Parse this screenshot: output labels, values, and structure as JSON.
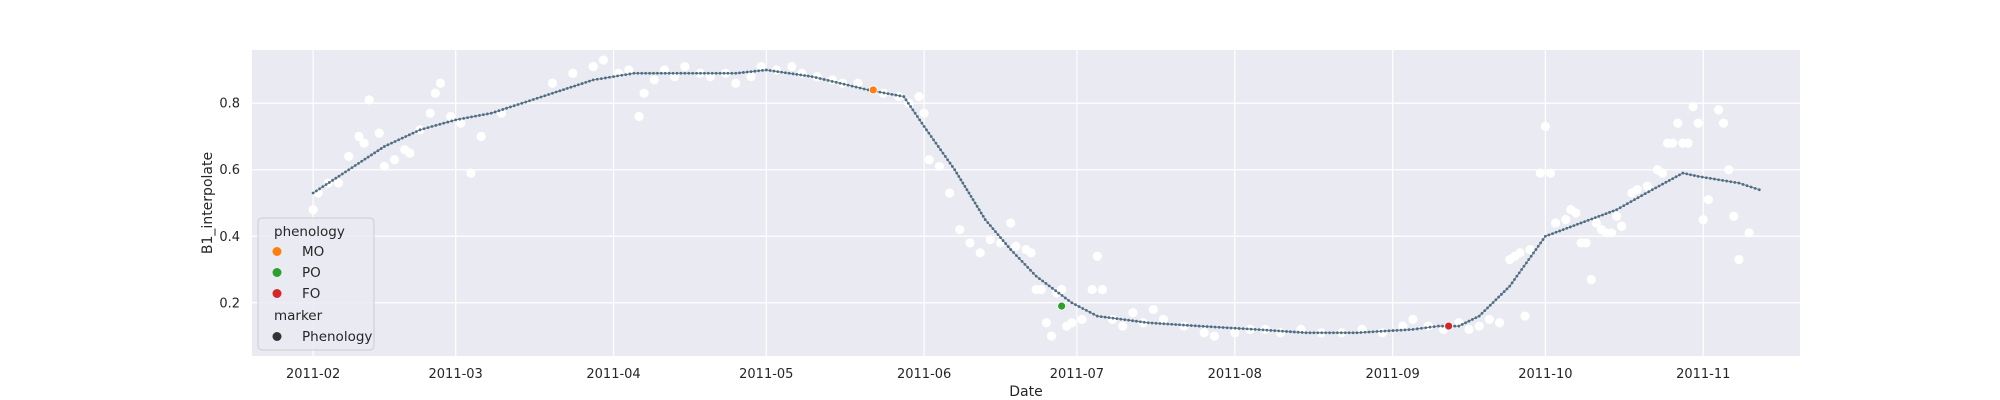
{
  "chart_data": {
    "type": "scatter",
    "title": "",
    "xlabel": "Date",
    "ylabel": "B1_interpolate",
    "x_axis_type": "date",
    "xlim": [
      "2011-01-20",
      "2011-11-20"
    ],
    "ylim": [
      0.04,
      0.96
    ],
    "xticks": [
      "2011-02-01",
      "2011-03-01",
      "2011-04-01",
      "2011-05-01",
      "2011-06-01",
      "2011-07-01",
      "2011-08-01",
      "2011-09-01",
      "2011-10-01",
      "2011-11-01"
    ],
    "xtick_labels": [
      "2011-02",
      "2011-03",
      "2011-04",
      "2011-05",
      "2011-06",
      "2011-07",
      "2011-08",
      "2011-09",
      "2011-10",
      "2011-11"
    ],
    "yticks": [
      0.2,
      0.4,
      0.6,
      0.8
    ],
    "ytick_labels": [
      "0.2",
      "0.4",
      "0.6",
      "0.8"
    ],
    "grid": true,
    "background": "#eaeaf2",
    "legend": {
      "position": "lower-left",
      "title": "phenology",
      "entries": [
        {
          "label": "MO",
          "color": "#ff7f0e"
        },
        {
          "label": "PO",
          "color": "#2ca02c"
        },
        {
          "label": "FO",
          "color": "#d62728"
        }
      ],
      "marker_title": "marker",
      "marker_entries": [
        {
          "label": "Phenology",
          "color": "#333333"
        }
      ]
    },
    "series": [
      {
        "name": "",
        "kind": "scatter",
        "color": "#ffffff",
        "points": [
          [
            "2011-02-01",
            0.48
          ],
          [
            "2011-02-02",
            0.53
          ],
          [
            "2011-02-04",
            0.56
          ],
          [
            "2011-02-06",
            0.56
          ],
          [
            "2011-02-08",
            0.64
          ],
          [
            "2011-02-10",
            0.7
          ],
          [
            "2011-02-11",
            0.68
          ],
          [
            "2011-02-12",
            0.81
          ],
          [
            "2011-02-14",
            0.71
          ],
          [
            "2011-02-15",
            0.61
          ],
          [
            "2011-02-17",
            0.63
          ],
          [
            "2011-02-19",
            0.66
          ],
          [
            "2011-02-20",
            0.65
          ],
          [
            "2011-02-22",
            0.72
          ],
          [
            "2011-02-24",
            0.77
          ],
          [
            "2011-02-25",
            0.83
          ],
          [
            "2011-02-26",
            0.86
          ],
          [
            "2011-02-28",
            0.76
          ],
          [
            "2011-03-02",
            0.74
          ],
          [
            "2011-03-04",
            0.59
          ],
          [
            "2011-03-06",
            0.7
          ],
          [
            "2011-03-10",
            0.77
          ],
          [
            "2011-03-20",
            0.86
          ],
          [
            "2011-03-24",
            0.89
          ],
          [
            "2011-03-28",
            0.91
          ],
          [
            "2011-03-30",
            0.93
          ],
          [
            "2011-04-02",
            0.89
          ],
          [
            "2011-04-04",
            0.9
          ],
          [
            "2011-04-06",
            0.76
          ],
          [
            "2011-04-07",
            0.83
          ],
          [
            "2011-04-09",
            0.87
          ],
          [
            "2011-04-11",
            0.9
          ],
          [
            "2011-04-13",
            0.88
          ],
          [
            "2011-04-15",
            0.91
          ],
          [
            "2011-04-18",
            0.89
          ],
          [
            "2011-04-20",
            0.88
          ],
          [
            "2011-04-23",
            0.89
          ],
          [
            "2011-04-25",
            0.86
          ],
          [
            "2011-04-28",
            0.88
          ],
          [
            "2011-04-30",
            0.91
          ],
          [
            "2011-05-03",
            0.9
          ],
          [
            "2011-05-06",
            0.91
          ],
          [
            "2011-05-08",
            0.89
          ],
          [
            "2011-05-11",
            0.88
          ],
          [
            "2011-05-14",
            0.87
          ],
          [
            "2011-05-16",
            0.86
          ],
          [
            "2011-05-19",
            0.86
          ],
          [
            "2011-05-22",
            0.84
          ],
          [
            "2011-05-24",
            0.83
          ],
          [
            "2011-05-27",
            0.82
          ],
          [
            "2011-05-29",
            0.8
          ],
          [
            "2011-05-31",
            0.82
          ],
          [
            "2011-06-01",
            0.77
          ],
          [
            "2011-06-02",
            0.63
          ],
          [
            "2011-06-04",
            0.61
          ],
          [
            "2011-06-06",
            0.53
          ],
          [
            "2011-06-08",
            0.42
          ],
          [
            "2011-06-10",
            0.38
          ],
          [
            "2011-06-12",
            0.35
          ],
          [
            "2011-06-14",
            0.39
          ],
          [
            "2011-06-16",
            0.38
          ],
          [
            "2011-06-18",
            0.44
          ],
          [
            "2011-06-19",
            0.37
          ],
          [
            "2011-06-21",
            0.36
          ],
          [
            "2011-06-22",
            0.35
          ],
          [
            "2011-06-23",
            0.24
          ],
          [
            "2011-06-24",
            0.24
          ],
          [
            "2011-06-25",
            0.14
          ],
          [
            "2011-06-26",
            0.1
          ],
          [
            "2011-06-27",
            0.23
          ],
          [
            "2011-06-28",
            0.24
          ],
          [
            "2011-06-29",
            0.13
          ],
          [
            "2011-06-30",
            0.14
          ],
          [
            "2011-07-02",
            0.15
          ],
          [
            "2011-07-04",
            0.24
          ],
          [
            "2011-07-05",
            0.34
          ],
          [
            "2011-07-06",
            0.24
          ],
          [
            "2011-07-08",
            0.15
          ],
          [
            "2011-07-10",
            0.13
          ],
          [
            "2011-07-12",
            0.17
          ],
          [
            "2011-07-14",
            0.14
          ],
          [
            "2011-07-16",
            0.18
          ],
          [
            "2011-07-18",
            0.15
          ],
          [
            "2011-07-22",
            0.13
          ],
          [
            "2011-07-26",
            0.11
          ],
          [
            "2011-07-28",
            0.1
          ],
          [
            "2011-08-01",
            0.11
          ],
          [
            "2011-08-04",
            0.12
          ],
          [
            "2011-08-07",
            0.12
          ],
          [
            "2011-08-10",
            0.11
          ],
          [
            "2011-08-14",
            0.12
          ],
          [
            "2011-08-18",
            0.11
          ],
          [
            "2011-08-22",
            0.11
          ],
          [
            "2011-08-26",
            0.12
          ],
          [
            "2011-08-30",
            0.11
          ],
          [
            "2011-09-03",
            0.13
          ],
          [
            "2011-09-05",
            0.15
          ],
          [
            "2011-09-08",
            0.13
          ],
          [
            "2011-09-11",
            0.12
          ],
          [
            "2011-09-14",
            0.14
          ],
          [
            "2011-09-16",
            0.12
          ],
          [
            "2011-09-18",
            0.13
          ],
          [
            "2011-09-20",
            0.15
          ],
          [
            "2011-09-22",
            0.14
          ],
          [
            "2011-09-24",
            0.33
          ],
          [
            "2011-09-25",
            0.34
          ],
          [
            "2011-09-26",
            0.35
          ],
          [
            "2011-09-27",
            0.16
          ],
          [
            "2011-09-28",
            0.36
          ],
          [
            "2011-09-30",
            0.59
          ],
          [
            "2011-10-01",
            0.73
          ],
          [
            "2011-10-02",
            0.59
          ],
          [
            "2011-10-03",
            0.44
          ],
          [
            "2011-10-05",
            0.45
          ],
          [
            "2011-10-06",
            0.48
          ],
          [
            "2011-10-07",
            0.47
          ],
          [
            "2011-10-08",
            0.38
          ],
          [
            "2011-10-09",
            0.38
          ],
          [
            "2011-10-10",
            0.27
          ],
          [
            "2011-10-11",
            0.44
          ],
          [
            "2011-10-12",
            0.42
          ],
          [
            "2011-10-13",
            0.41
          ],
          [
            "2011-10-14",
            0.41
          ],
          [
            "2011-10-15",
            0.46
          ],
          [
            "2011-10-16",
            0.43
          ],
          [
            "2011-10-18",
            0.53
          ],
          [
            "2011-10-19",
            0.54
          ],
          [
            "2011-10-21",
            0.55
          ],
          [
            "2011-10-23",
            0.6
          ],
          [
            "2011-10-24",
            0.59
          ],
          [
            "2011-10-25",
            0.68
          ],
          [
            "2011-10-26",
            0.68
          ],
          [
            "2011-10-27",
            0.74
          ],
          [
            "2011-10-28",
            0.68
          ],
          [
            "2011-10-29",
            0.68
          ],
          [
            "2011-10-30",
            0.79
          ],
          [
            "2011-10-31",
            0.74
          ],
          [
            "2011-11-01",
            0.45
          ],
          [
            "2011-11-02",
            0.51
          ],
          [
            "2011-11-04",
            0.78
          ],
          [
            "2011-11-05",
            0.74
          ],
          [
            "2011-11-06",
            0.6
          ],
          [
            "2011-11-07",
            0.46
          ],
          [
            "2011-11-08",
            0.33
          ],
          [
            "2011-11-10",
            0.41
          ]
        ]
      },
      {
        "name": "",
        "kind": "line",
        "color": "#4c6f86",
        "points": [
          [
            "2011-02-01",
            0.53
          ],
          [
            "2011-02-08",
            0.6
          ],
          [
            "2011-02-15",
            0.67
          ],
          [
            "2011-02-22",
            0.72
          ],
          [
            "2011-03-01",
            0.75
          ],
          [
            "2011-03-08",
            0.77
          ],
          [
            "2011-03-20",
            0.83
          ],
          [
            "2011-03-28",
            0.87
          ],
          [
            "2011-04-05",
            0.89
          ],
          [
            "2011-04-15",
            0.89
          ],
          [
            "2011-04-25",
            0.89
          ],
          [
            "2011-05-01",
            0.9
          ],
          [
            "2011-05-10",
            0.88
          ],
          [
            "2011-05-21",
            0.84
          ],
          [
            "2011-05-28",
            0.82
          ],
          [
            "2011-06-01",
            0.73
          ],
          [
            "2011-06-07",
            0.6
          ],
          [
            "2011-06-13",
            0.45
          ],
          [
            "2011-06-18",
            0.36
          ],
          [
            "2011-06-23",
            0.28
          ],
          [
            "2011-06-30",
            0.2
          ],
          [
            "2011-07-05",
            0.16
          ],
          [
            "2011-07-15",
            0.14
          ],
          [
            "2011-07-25",
            0.13
          ],
          [
            "2011-08-05",
            0.12
          ],
          [
            "2011-08-15",
            0.11
          ],
          [
            "2011-08-25",
            0.11
          ],
          [
            "2011-09-05",
            0.12
          ],
          [
            "2011-09-10",
            0.13
          ],
          [
            "2011-09-14",
            0.13
          ],
          [
            "2011-09-18",
            0.16
          ],
          [
            "2011-09-24",
            0.25
          ],
          [
            "2011-10-01",
            0.4
          ],
          [
            "2011-10-08",
            0.44
          ],
          [
            "2011-10-15",
            0.48
          ],
          [
            "2011-10-22",
            0.54
          ],
          [
            "2011-10-28",
            0.59
          ],
          [
            "2011-10-31",
            0.58
          ],
          [
            "2011-11-08",
            0.56
          ],
          [
            "2011-11-12",
            0.54
          ]
        ]
      },
      {
        "name": "Phenology",
        "kind": "markers",
        "points": [
          {
            "x": "2011-05-22",
            "y": 0.84,
            "label": "MO",
            "color": "#ff7f0e"
          },
          {
            "x": "2011-06-28",
            "y": 0.19,
            "label": "PO",
            "color": "#2ca02c"
          },
          {
            "x": "2011-09-12",
            "y": 0.13,
            "label": "FO",
            "color": "#d62728"
          }
        ]
      }
    ]
  }
}
